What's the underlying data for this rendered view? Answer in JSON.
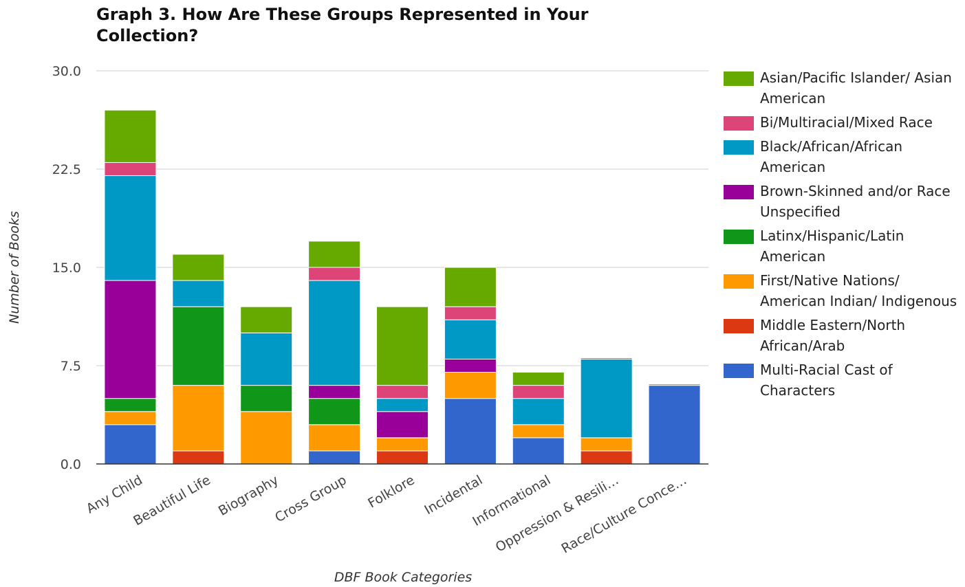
{
  "chart_data": {
    "type": "bar",
    "stacked": true,
    "title": "Graph 3. How Are These Groups Represented in Your Collection?",
    "xlabel": "DBF Book Categories",
    "ylabel": "Number of Books",
    "ylim": [
      0,
      30
    ],
    "yticks": [
      "0.0",
      "7.5",
      "15.0",
      "22.5",
      "30.0"
    ],
    "ytick_values": [
      0,
      7.5,
      15,
      22.5,
      30
    ],
    "grid": true,
    "legend_position": "right",
    "categories": [
      "Any Child",
      "Beautiful Life",
      "Biography",
      "Cross Group",
      "Folklore",
      "Incidental",
      "Informational",
      "Oppression & Resili…",
      "Race/Culture Conce…"
    ],
    "series": [
      {
        "name": "Multi-Racial Cast of Characters",
        "color": "#3366cc",
        "values": [
          3,
          0,
          0,
          1,
          0,
          5,
          2,
          0,
          6
        ]
      },
      {
        "name": "Middle Eastern/North African/Arab",
        "color": "#dc3912",
        "values": [
          0,
          1,
          0,
          0,
          1,
          0,
          0,
          1,
          0
        ]
      },
      {
        "name": "First/Native Nations/ American Indian/ Indigenous",
        "color": "#ff9900",
        "values": [
          1,
          5,
          4,
          2,
          1,
          2,
          1,
          1,
          0
        ]
      },
      {
        "name": "Brown-Skinned and/or Race Unspecified",
        "color": "#990099",
        "values": [
          0,
          0,
          0,
          0,
          2,
          0,
          0,
          0,
          0
        ]
      },
      {
        "name": "Latinx/Hispanic/Latin American",
        "color": "#109618",
        "values": [
          1,
          6,
          2,
          2,
          0,
          0,
          0,
          0,
          0
        ]
      },
      {
        "name": "Brown-Skinned and/or Race Unspecified",
        "color": "#990099",
        "values": [
          9,
          0,
          0,
          1,
          0,
          1,
          0,
          0,
          0
        ]
      },
      {
        "name": "Black/African/African American",
        "color": "#0099c6",
        "values": [
          8,
          2,
          4,
          8,
          1,
          3,
          2,
          6,
          0
        ]
      },
      {
        "name": "Bi/Multiracial/Mixed Race",
        "color": "#dd4477",
        "values": [
          1,
          0,
          0,
          1,
          1,
          1,
          1,
          0,
          0
        ]
      },
      {
        "name": "Asian/Pacific Islander/ Asian American",
        "color": "#66aa00",
        "values": [
          4,
          2,
          2,
          2,
          6,
          3,
          1,
          0.1,
          0.1
        ]
      }
    ],
    "legend": [
      {
        "label": "Asian/Pacific Islander/ Asian American",
        "color": "#66aa00"
      },
      {
        "label": "Bi/Multiracial/Mixed Race",
        "color": "#dd4477"
      },
      {
        "label": "Black/African/African American",
        "color": "#0099c6"
      },
      {
        "label": "Brown-Skinned and/or Race Unspecified",
        "color": "#990099"
      },
      {
        "label": "Latinx/Hispanic/Latin American",
        "color": "#109618"
      },
      {
        "label": "First/Native Nations/ American Indian/ Indigenous",
        "color": "#ff9900"
      },
      {
        "label": "Middle Eastern/North African/Arab",
        "color": "#dc3912"
      },
      {
        "label": "Multi-Racial Cast of Characters",
        "color": "#3366cc"
      }
    ]
  }
}
